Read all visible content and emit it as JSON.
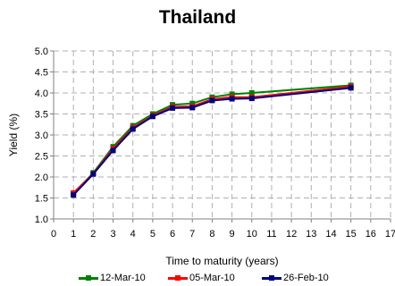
{
  "chart_data": {
    "type": "line",
    "title": "Thailand",
    "xlabel": "Time to maturity (years)",
    "ylabel": "Yield (%)",
    "xlim": [
      0,
      17
    ],
    "ylim": [
      1.0,
      5.0
    ],
    "x_ticks": [
      "0",
      "1",
      "2",
      "3",
      "4",
      "5",
      "6",
      "7",
      "8",
      "9",
      "10",
      "11",
      "12",
      "13",
      "14",
      "15",
      "16",
      "17"
    ],
    "y_ticks": [
      "1.0",
      "1.5",
      "2.0",
      "2.5",
      "3.0",
      "3.5",
      "4.0",
      "4.5",
      "5.0"
    ],
    "grid": true,
    "legend_position": "bottom",
    "x": [
      1,
      2,
      3,
      4,
      5,
      6,
      7,
      8,
      9,
      10,
      15
    ],
    "series": [
      {
        "name": "12-Mar-10",
        "color": "#008000",
        "values": [
          1.6,
          2.1,
          2.72,
          3.22,
          3.5,
          3.72,
          3.75,
          3.9,
          3.97,
          4.0,
          4.18
        ]
      },
      {
        "name": "05-Mar-10",
        "color": "#ff0000",
        "values": [
          1.62,
          2.08,
          2.67,
          3.17,
          3.46,
          3.67,
          3.68,
          3.85,
          3.9,
          3.9,
          4.15
        ]
      },
      {
        "name": "26-Feb-10",
        "color": "#000080",
        "values": [
          1.57,
          2.07,
          2.63,
          3.14,
          3.44,
          3.64,
          3.65,
          3.82,
          3.86,
          3.87,
          4.12
        ]
      }
    ]
  }
}
